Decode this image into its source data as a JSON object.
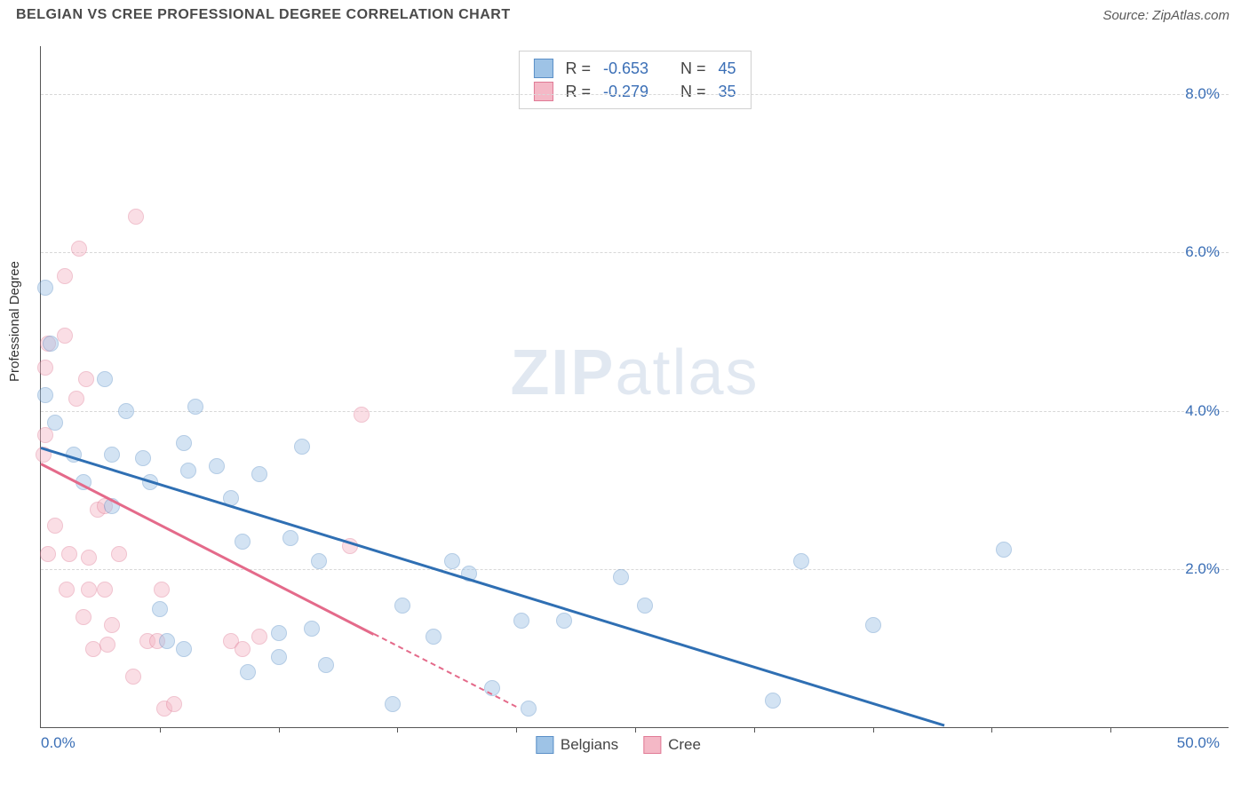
{
  "header": {
    "title": "BELGIAN VS CREE PROFESSIONAL DEGREE CORRELATION CHART",
    "source": "Source: ZipAtlas.com"
  },
  "chart": {
    "type": "scatter",
    "ylabel": "Professional Degree",
    "watermark_bold": "ZIP",
    "watermark_light": "atlas",
    "xlim": [
      0,
      50
    ],
    "ylim": [
      0,
      8.6
    ],
    "x_tick_start": "0.0%",
    "x_tick_end": "50.0%",
    "x_minor_ticks": [
      5,
      10,
      15,
      20,
      25,
      30,
      35,
      40,
      45
    ],
    "y_gridlines": [
      2.0,
      4.0,
      6.0,
      8.0
    ],
    "y_tick_labels": [
      "2.0%",
      "4.0%",
      "6.0%",
      "8.0%"
    ],
    "background_color": "#ffffff",
    "grid_color": "#d8d8d8",
    "axis_color": "#555555",
    "label_fontsize": 15,
    "tick_fontsize": 17,
    "tick_color": "#3b6fb6",
    "marker_radius": 9,
    "marker_fill_opacity": 0.45,
    "marker_stroke_width": 1.5,
    "series": {
      "belgians": {
        "label": "Belgians",
        "fill_color": "#9ec3e6",
        "stroke_color": "#5a8fc7",
        "trend_color": "#2f6fb3",
        "trend_width": 3,
        "trend": {
          "x1": 0,
          "y1": 3.55,
          "x2": 38,
          "y2": 0.05
        },
        "points": [
          [
            0.2,
            5.55
          ],
          [
            0.4,
            4.85
          ],
          [
            0.2,
            4.2
          ],
          [
            0.6,
            3.85
          ],
          [
            2.7,
            4.4
          ],
          [
            3.6,
            4.0
          ],
          [
            6.5,
            4.05
          ],
          [
            6.0,
            3.6
          ],
          [
            11.0,
            3.55
          ],
          [
            1.4,
            3.45
          ],
          [
            3.0,
            3.45
          ],
          [
            4.3,
            3.4
          ],
          [
            1.8,
            3.1
          ],
          [
            4.6,
            3.1
          ],
          [
            3.0,
            2.8
          ],
          [
            6.2,
            3.25
          ],
          [
            7.4,
            3.3
          ],
          [
            9.2,
            3.2
          ],
          [
            8.0,
            2.9
          ],
          [
            8.5,
            2.35
          ],
          [
            10.5,
            2.4
          ],
          [
            11.7,
            2.1
          ],
          [
            17.3,
            2.1
          ],
          [
            15.2,
            1.55
          ],
          [
            18.0,
            1.95
          ],
          [
            20.2,
            1.35
          ],
          [
            22.0,
            1.35
          ],
          [
            24.4,
            1.9
          ],
          [
            25.4,
            1.55
          ],
          [
            32.0,
            2.1
          ],
          [
            30.8,
            0.35
          ],
          [
            35.0,
            1.3
          ],
          [
            40.5,
            2.25
          ],
          [
            10.0,
            0.9
          ],
          [
            10.0,
            1.2
          ],
          [
            11.4,
            1.25
          ],
          [
            12.0,
            0.8
          ],
          [
            8.7,
            0.7
          ],
          [
            5.0,
            1.5
          ],
          [
            5.3,
            1.1
          ],
          [
            6.0,
            1.0
          ],
          [
            16.5,
            1.15
          ],
          [
            19.0,
            0.5
          ],
          [
            20.5,
            0.25
          ],
          [
            14.8,
            0.3
          ]
        ]
      },
      "cree": {
        "label": "Cree",
        "fill_color": "#f4b8c6",
        "stroke_color": "#e07a95",
        "trend_color": "#e46a8a",
        "trend_width": 3,
        "trend_solid": {
          "x1": 0,
          "y1": 3.35,
          "x2": 14.0,
          "y2": 1.2
        },
        "trend_dash": {
          "x1": 14.0,
          "y1": 1.2,
          "x2": 20.0,
          "y2": 0.28
        },
        "points": [
          [
            0.3,
            4.85
          ],
          [
            1.0,
            4.95
          ],
          [
            4.0,
            6.45
          ],
          [
            1.6,
            6.05
          ],
          [
            1.0,
            5.7
          ],
          [
            0.2,
            4.55
          ],
          [
            1.9,
            4.4
          ],
          [
            1.5,
            4.15
          ],
          [
            0.2,
            3.7
          ],
          [
            0.1,
            3.45
          ],
          [
            2.4,
            2.75
          ],
          [
            2.7,
            2.8
          ],
          [
            0.6,
            2.55
          ],
          [
            0.3,
            2.2
          ],
          [
            1.2,
            2.2
          ],
          [
            1.1,
            1.75
          ],
          [
            2.0,
            1.75
          ],
          [
            1.8,
            1.4
          ],
          [
            2.7,
            1.75
          ],
          [
            5.1,
            1.75
          ],
          [
            3.0,
            1.3
          ],
          [
            4.5,
            1.1
          ],
          [
            4.9,
            1.1
          ],
          [
            3.3,
            2.2
          ],
          [
            5.2,
            0.25
          ],
          [
            5.6,
            0.3
          ],
          [
            8.0,
            1.1
          ],
          [
            8.5,
            1.0
          ],
          [
            9.2,
            1.15
          ],
          [
            13.0,
            2.3
          ],
          [
            13.5,
            3.95
          ],
          [
            3.9,
            0.65
          ],
          [
            2.2,
            1.0
          ],
          [
            2.8,
            1.05
          ],
          [
            2.0,
            2.15
          ]
        ]
      }
    },
    "stats_box": {
      "rows": [
        {
          "swatch_fill": "#9ec3e6",
          "swatch_stroke": "#5a8fc7",
          "r": "-0.653",
          "n": "45"
        },
        {
          "swatch_fill": "#f4b8c6",
          "swatch_stroke": "#e07a95",
          "r": "-0.279",
          "n": "35"
        }
      ],
      "r_label": "R =",
      "n_label": "N ="
    },
    "bottom_legend": [
      {
        "label": "Belgians",
        "swatch_fill": "#9ec3e6",
        "swatch_stroke": "#5a8fc7"
      },
      {
        "label": "Cree",
        "swatch_fill": "#f4b8c6",
        "swatch_stroke": "#e07a95"
      }
    ]
  }
}
